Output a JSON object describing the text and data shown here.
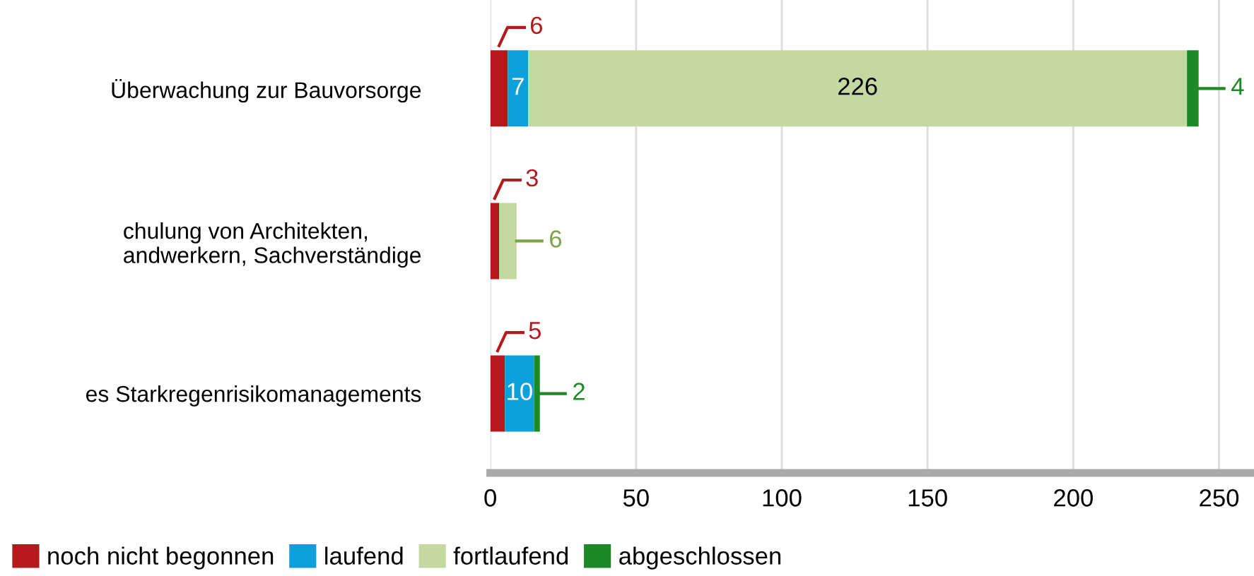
{
  "chart_data": {
    "type": "bar",
    "orientation": "horizontal",
    "stacked": true,
    "categories": [
      "Überwachung zur Bauvorsorge",
      "chulung von Architekten,\nandwerkern, Sachverständige",
      "es Starkregenrisikomanagements"
    ],
    "series": [
      {
        "name": "noch nicht begonnen",
        "color": "#b5191c",
        "values": [
          6,
          3,
          5
        ],
        "value_labels": [
          "6",
          "3",
          "5"
        ]
      },
      {
        "name": "laufend",
        "color": "#0da0dc",
        "values": [
          7,
          0,
          10
        ],
        "value_labels": [
          "7",
          null,
          "10"
        ]
      },
      {
        "name": "fortlaufend",
        "color": "#c4d9a1",
        "values": [
          226,
          6,
          0
        ],
        "value_labels": [
          "226",
          "6",
          null
        ]
      },
      {
        "name": "abgeschlossen",
        "color": "#1b8a24",
        "values": [
          4,
          0,
          2
        ],
        "value_labels": [
          "4",
          null,
          "2"
        ]
      }
    ],
    "xlim": [
      0,
      262
    ],
    "xticks": [
      0,
      50,
      100,
      150,
      200,
      250
    ],
    "grid": "x",
    "legend": "bottom left"
  }
}
